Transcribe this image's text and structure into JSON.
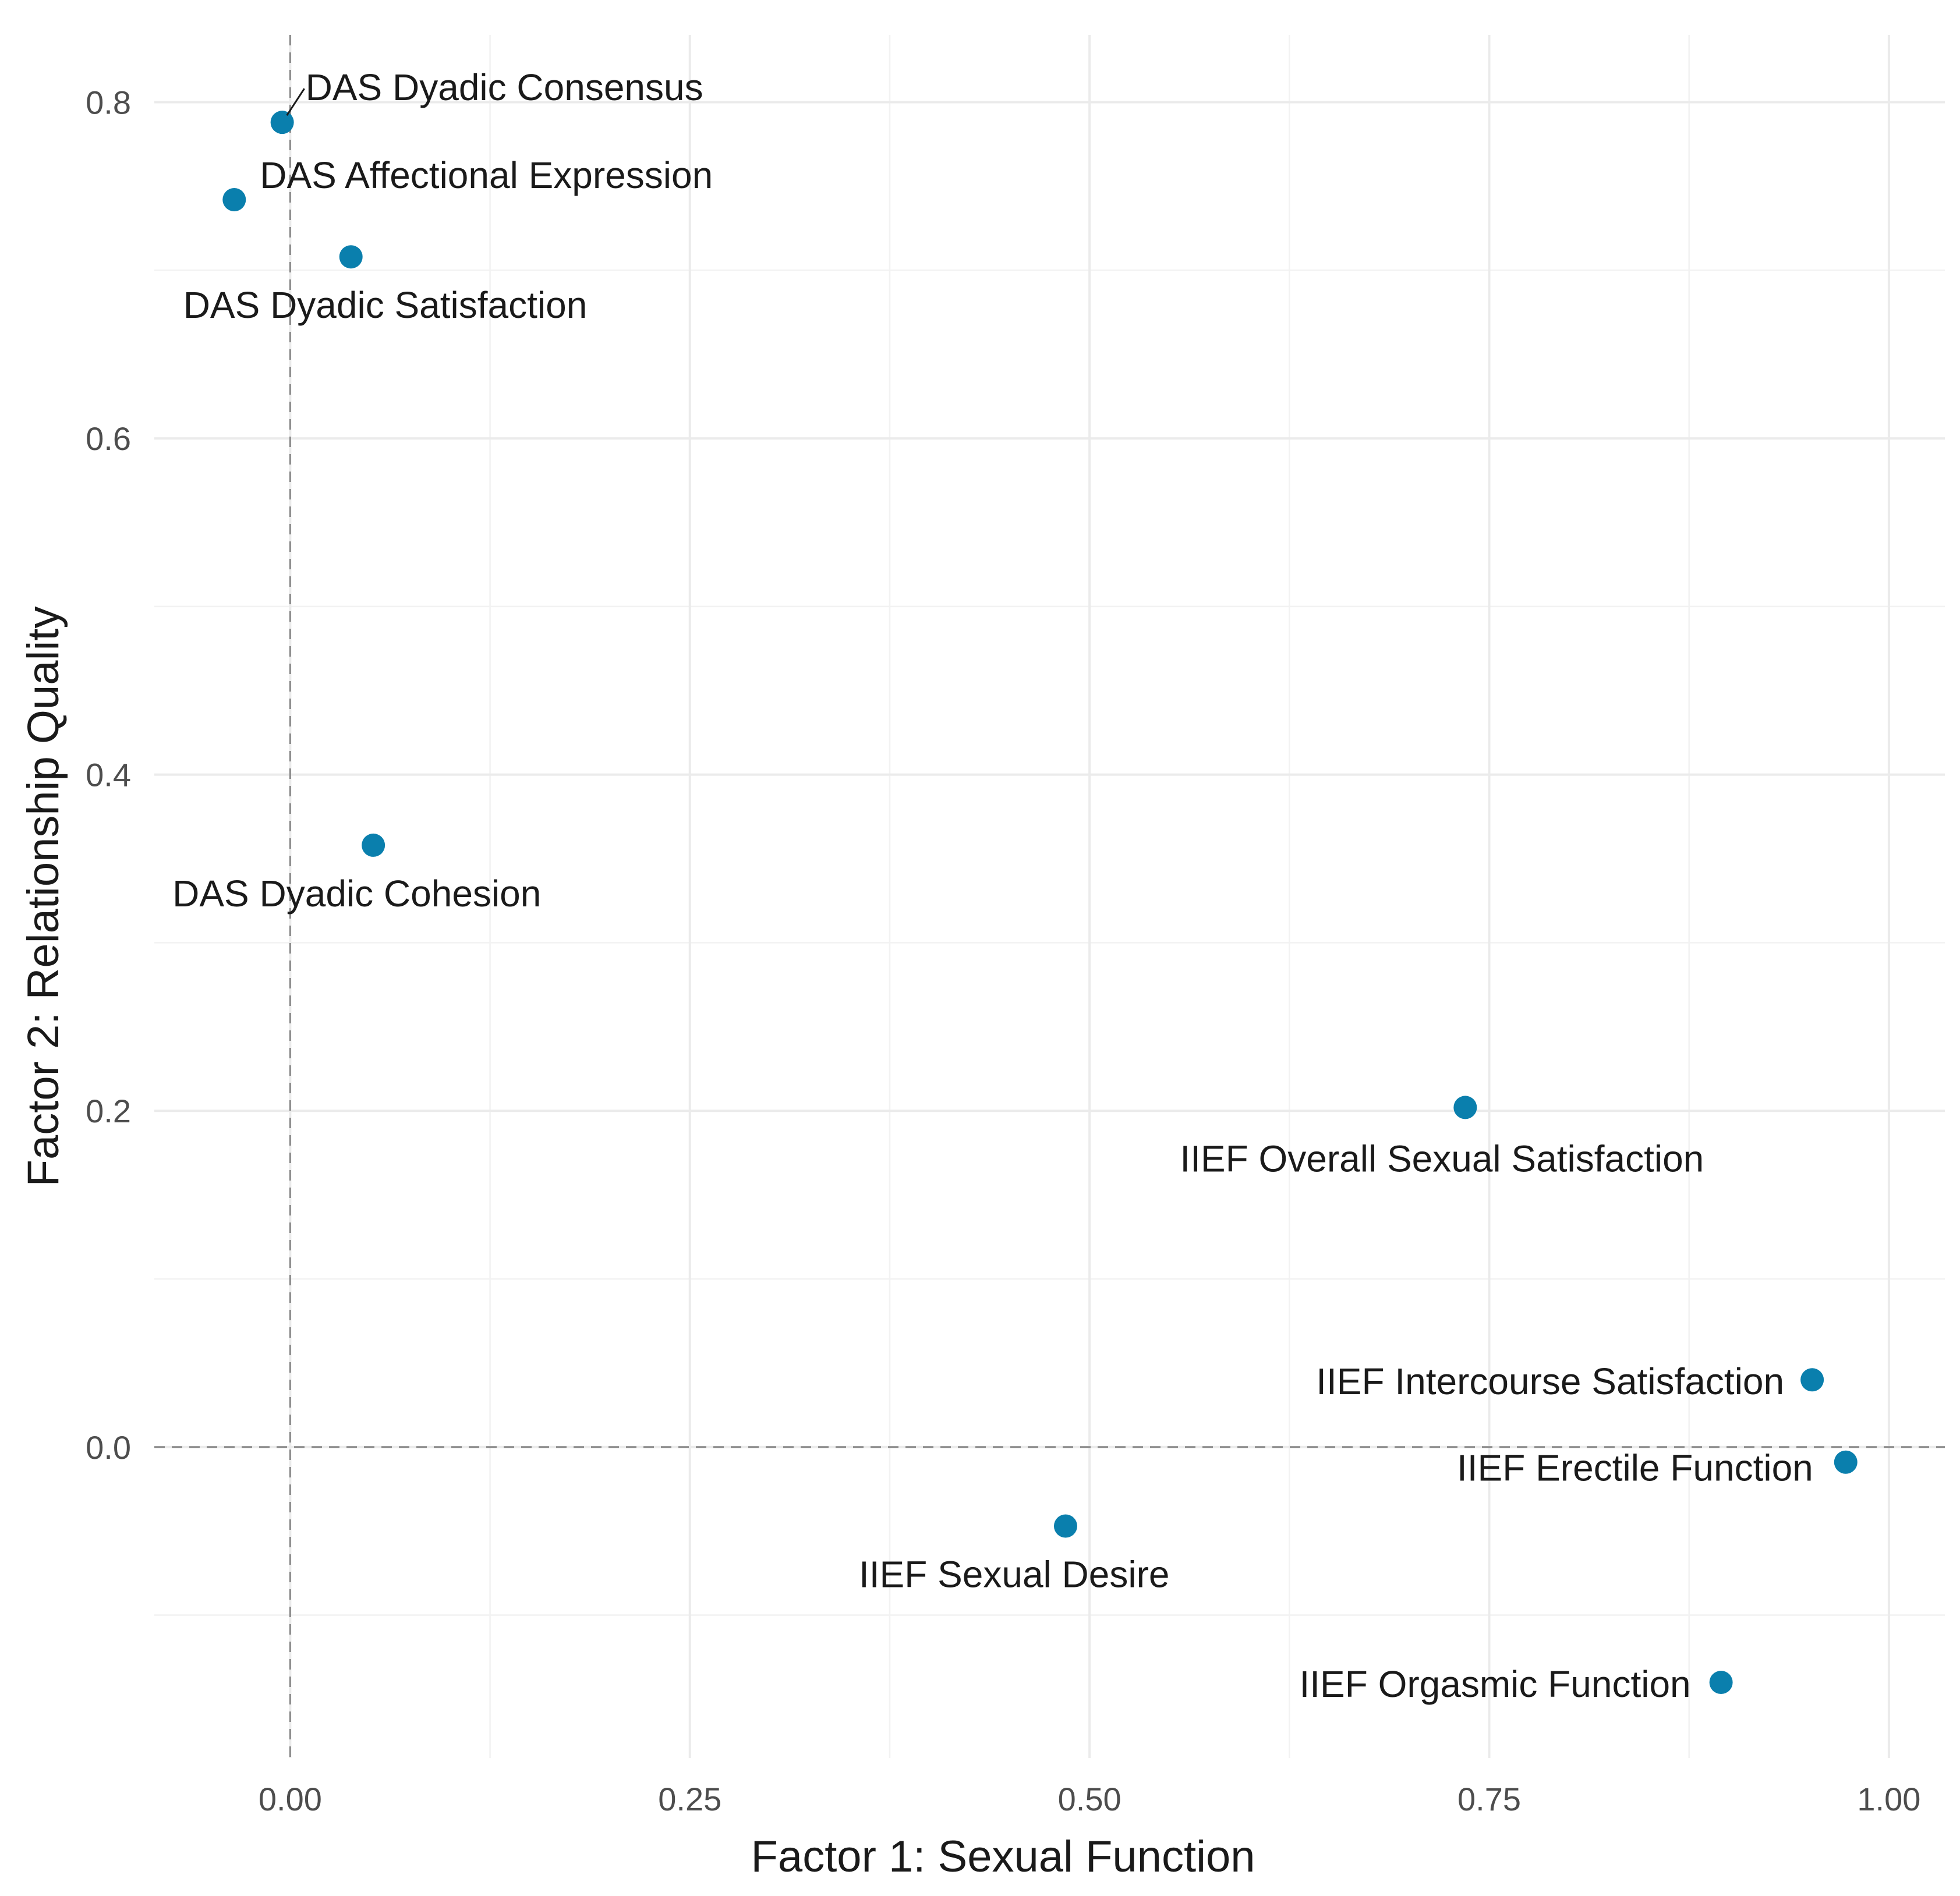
{
  "chart_data": {
    "type": "scatter",
    "title": "",
    "xlabel": "Factor 1: Sexual Function",
    "ylabel": "Factor 2: Relationship Quality",
    "xlim": [
      -0.085,
      1.035
    ],
    "ylim": [
      -0.185,
      0.84
    ],
    "x_ticks": [
      0.0,
      0.25,
      0.5,
      0.75,
      1.0
    ],
    "x_tick_labels": [
      "0.00",
      "0.25",
      "0.50",
      "0.75",
      "1.00"
    ],
    "y_ticks": [
      0.0,
      0.2,
      0.4,
      0.6,
      0.8
    ],
    "y_tick_labels": [
      "0.0",
      "0.2",
      "0.4",
      "0.6",
      "0.8"
    ],
    "grid": true,
    "reference_lines": {
      "x": 0,
      "y": 0
    },
    "point_color": "#0a7fad",
    "points": [
      {
        "label": "DAS Dyadic Consensus",
        "x": -0.005,
        "y": 0.788
      },
      {
        "label": "DAS Affectional Expression",
        "x": -0.035,
        "y": 0.742
      },
      {
        "label": "DAS Dyadic Satisfaction",
        "x": 0.038,
        "y": 0.708
      },
      {
        "label": "DAS Dyadic Cohesion",
        "x": 0.052,
        "y": 0.358
      },
      {
        "label": "IIEF Overall Sexual Satisfaction",
        "x": 0.735,
        "y": 0.202
      },
      {
        "label": "IIEF Intercourse Satisfaction",
        "x": 0.952,
        "y": 0.04
      },
      {
        "label": "IIEF Erectile Function",
        "x": 0.973,
        "y": -0.009
      },
      {
        "label": "IIEF Sexual Desire",
        "x": 0.485,
        "y": -0.047
      },
      {
        "label": "IIEF Orgasmic Function",
        "x": 0.895,
        "y": -0.14
      }
    ]
  }
}
